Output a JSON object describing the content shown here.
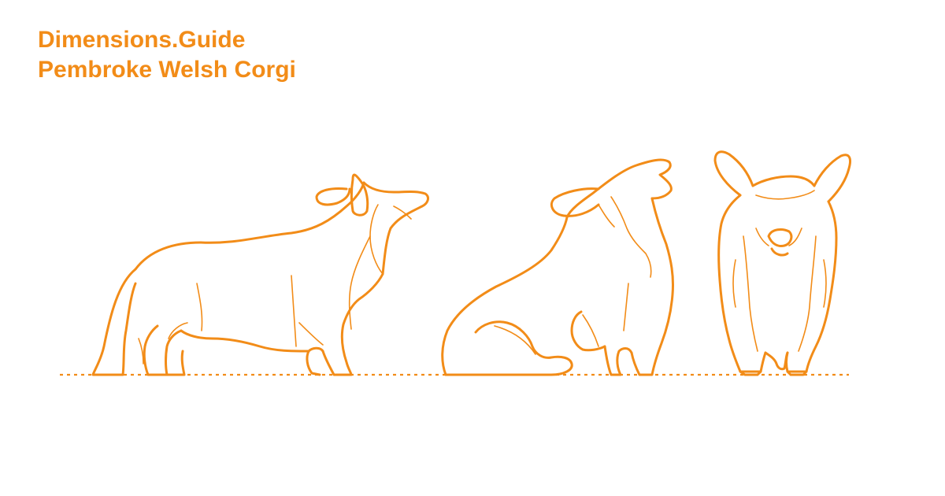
{
  "header": {
    "site_name": "Dimensions.Guide",
    "subject": "Pembroke Welsh Corgi"
  },
  "theme": {
    "accent": "#F28C18",
    "background": "#FFFFFF"
  },
  "illustration": {
    "figures": [
      "corgi-standing-side-view",
      "corgi-sitting-side-view",
      "corgi-standing-front-view"
    ]
  }
}
